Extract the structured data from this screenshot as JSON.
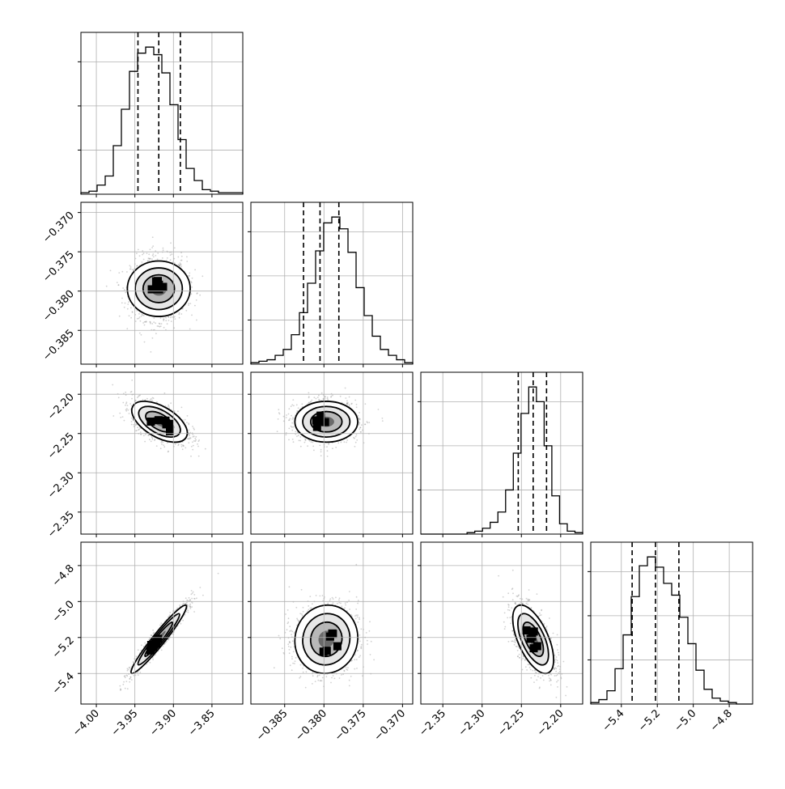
{
  "chart_data": {
    "type": "corner",
    "n_params": 4,
    "grid": true,
    "colors": {
      "hist_line": "#000000",
      "scatter": "#9a9a9a",
      "density_dark": "#000000",
      "grid": "#b0b0b0",
      "spine": "#000000"
    },
    "params": [
      {
        "index": 0,
        "range": [
          -4.02,
          -3.81
        ],
        "ticks": [
          -4.0,
          -3.95,
          -3.9,
          -3.85
        ],
        "tick_labels": [
          "−4.00",
          "−3.95",
          "−3.90",
          "−3.85"
        ],
        "quantiles": [
          -3.946,
          -3.919,
          -3.891
        ],
        "hist": {
          "counts": [
            1,
            2,
            6,
            12,
            32,
            56,
            81,
            93,
            97,
            92,
            80,
            59,
            36,
            17,
            9,
            3,
            2,
            1,
            1,
            1
          ]
        }
      },
      {
        "index": 1,
        "range": [
          -0.3893,
          -0.3687
        ],
        "ticks": [
          -0.385,
          -0.38,
          -0.375,
          -0.37
        ],
        "tick_labels": [
          "−0.385",
          "−0.380",
          "−0.375",
          "−0.370"
        ],
        "quantiles": [
          -0.3826,
          -0.3805,
          -0.3781
        ],
        "hist": {
          "counts": [
            1,
            2,
            3,
            6,
            10,
            20,
            35,
            55,
            77,
            96,
            100,
            92,
            76,
            52,
            33,
            19,
            10,
            6,
            3,
            1
          ]
        }
      },
      {
        "index": 2,
        "range": [
          -2.378,
          -2.172
        ],
        "ticks": [
          -2.35,
          -2.3,
          -2.25,
          -2.2
        ],
        "tick_labels": [
          "−2.35",
          "−2.30",
          "−2.25",
          "−2.20"
        ],
        "quantiles": [
          -2.254,
          -2.235,
          -2.218
        ],
        "hist": {
          "counts": [
            0,
            0,
            0,
            0,
            0,
            0,
            1,
            2,
            4,
            8,
            15,
            30,
            55,
            82,
            100,
            90,
            60,
            26,
            7,
            2,
            1
          ]
        }
      },
      {
        "index": 3,
        "range": [
          -5.57,
          -4.67
        ],
        "ticks": [
          -5.4,
          -5.2,
          -5.0,
          -4.8
        ],
        "tick_labels": [
          "−5.4",
          "−5.2",
          "−5.0",
          "−4.8"
        ],
        "quantiles": [
          -5.34,
          -5.21,
          -5.08
        ],
        "hist": {
          "counts": [
            1,
            3,
            9,
            24,
            47,
            73,
            94,
            100,
            93,
            82,
            74,
            59,
            41,
            23,
            10,
            4,
            2,
            1,
            0,
            0
          ]
        }
      }
    ],
    "pairs": [
      {
        "x": 0,
        "y": 1,
        "center": [
          -3.919,
          -0.3797
        ],
        "sd": [
          0.018,
          0.002
        ],
        "corr": 0.0
      },
      {
        "x": 0,
        "y": 2,
        "center": [
          -3.918,
          -2.235
        ],
        "sd": [
          0.018,
          0.013
        ],
        "corr": -0.55
      },
      {
        "x": 0,
        "y": 3,
        "center": [
          -3.919,
          -5.21
        ],
        "sd": [
          0.018,
          0.095
        ],
        "corr": 0.96
      },
      {
        "x": 1,
        "y": 2,
        "center": [
          -0.3797,
          -2.235
        ],
        "sd": [
          0.002,
          0.013
        ],
        "corr": 0.0
      },
      {
        "x": 1,
        "y": 3,
        "center": [
          -0.3797,
          -5.21
        ],
        "sd": [
          0.002,
          0.095
        ],
        "corr": 0.05
      },
      {
        "x": 2,
        "y": 3,
        "center": [
          -2.235,
          -5.21
        ],
        "sd": [
          0.013,
          0.095
        ],
        "corr": -0.6
      }
    ]
  }
}
